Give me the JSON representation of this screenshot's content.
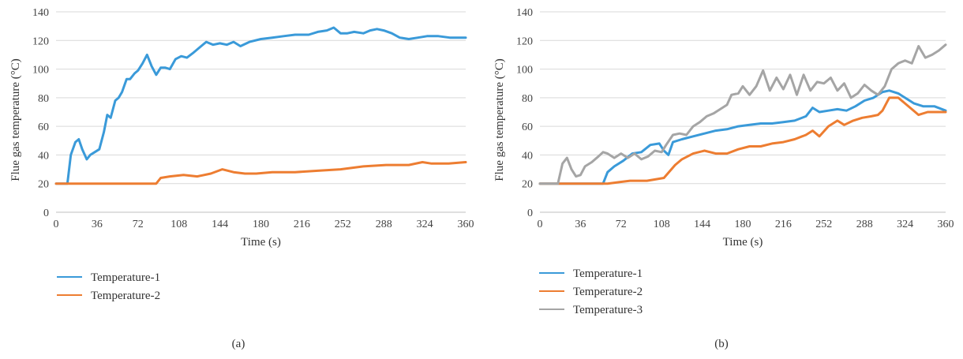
{
  "chart_data": [
    {
      "type": "line",
      "caption": "(a)",
      "xlabel": "Time (s)",
      "ylabel": "Flue gas temperature (°C)",
      "xlim": [
        0,
        360
      ],
      "ylim": [
        0,
        140
      ],
      "xticks": [
        0,
        36,
        72,
        108,
        144,
        180,
        216,
        252,
        288,
        324,
        360
      ],
      "yticks": [
        0,
        20,
        40,
        60,
        80,
        100,
        120,
        140
      ],
      "grid": true,
      "legend_position": "bottom-left",
      "series": [
        {
          "name": "Temperature-1",
          "color": "#3a9ad9",
          "x": [
            0,
            10,
            13,
            17,
            20,
            23,
            27,
            30,
            34,
            38,
            42,
            45,
            48,
            52,
            55,
            58,
            62,
            65,
            69,
            72,
            76,
            80,
            84,
            88,
            92,
            96,
            100,
            105,
            110,
            115,
            120,
            126,
            132,
            138,
            144,
            150,
            156,
            162,
            170,
            180,
            190,
            200,
            210,
            216,
            222,
            230,
            238,
            244,
            250,
            256,
            262,
            270,
            276,
            282,
            288,
            295,
            302,
            310,
            318,
            326,
            336,
            346,
            360
          ],
          "y": [
            20,
            20,
            40,
            49,
            51,
            44,
            37,
            40,
            42,
            44,
            56,
            68,
            66,
            78,
            80,
            84,
            93,
            93,
            97,
            99,
            104,
            110,
            102,
            96,
            101,
            101,
            100,
            107,
            109,
            108,
            111,
            115,
            119,
            117,
            118,
            117,
            119,
            116,
            119,
            121,
            122,
            123,
            124,
            124,
            124,
            126,
            127,
            129,
            125,
            125,
            126,
            125,
            127,
            128,
            127,
            125,
            122,
            121,
            122,
            123,
            123,
            122,
            122
          ]
        },
        {
          "name": "Temperature-2",
          "color": "#ed7d31",
          "x": [
            0,
            88,
            92,
            100,
            112,
            124,
            136,
            146,
            156,
            166,
            176,
            190,
            210,
            230,
            250,
            270,
            290,
            310,
            322,
            330,
            345,
            360
          ],
          "y": [
            20,
            20,
            24,
            25,
            26,
            25,
            27,
            30,
            28,
            27,
            27,
            28,
            28,
            29,
            30,
            32,
            33,
            33,
            35,
            34,
            34,
            35
          ]
        }
      ]
    },
    {
      "type": "line",
      "caption": "(b)",
      "xlabel": "Time (s)",
      "ylabel": "Flue gas temperature (°C)",
      "xlim": [
        0,
        360
      ],
      "ylim": [
        0,
        140
      ],
      "xticks": [
        0,
        36,
        72,
        108,
        144,
        180,
        216,
        252,
        288,
        324,
        360
      ],
      "yticks": [
        0,
        20,
        40,
        60,
        80,
        100,
        120,
        140
      ],
      "grid": true,
      "legend_position": "bottom-left",
      "series": [
        {
          "name": "Temperature-1",
          "color": "#3a9ad9",
          "x": [
            0,
            56,
            60,
            66,
            74,
            82,
            90,
            98,
            106,
            110,
            114,
            118,
            126,
            136,
            146,
            156,
            166,
            176,
            186,
            196,
            206,
            216,
            226,
            236,
            242,
            248,
            256,
            264,
            272,
            280,
            288,
            296,
            304,
            310,
            318,
            324,
            332,
            340,
            350,
            360
          ],
          "y": [
            20,
            20,
            28,
            32,
            36,
            41,
            42,
            47,
            48,
            43,
            40,
            49,
            51,
            53,
            55,
            57,
            58,
            60,
            61,
            62,
            62,
            63,
            64,
            67,
            73,
            70,
            71,
            72,
            71,
            74,
            78,
            80,
            84,
            85,
            83,
            80,
            76,
            74,
            74,
            71
          ]
        },
        {
          "name": "Temperature-2",
          "color": "#ed7d31",
          "x": [
            0,
            60,
            70,
            80,
            95,
            110,
            120,
            126,
            136,
            146,
            156,
            166,
            176,
            186,
            196,
            206,
            216,
            226,
            236,
            242,
            248,
            256,
            264,
            270,
            278,
            286,
            294,
            300,
            304,
            310,
            318,
            324,
            330,
            336,
            344,
            352,
            360
          ],
          "y": [
            20,
            20,
            21,
            22,
            22,
            24,
            33,
            37,
            41,
            43,
            41,
            41,
            44,
            46,
            46,
            48,
            49,
            51,
            54,
            57,
            53,
            60,
            64,
            61,
            64,
            66,
            67,
            68,
            71,
            80,
            80,
            76,
            72,
            68,
            70,
            70,
            70
          ]
        },
        {
          "name": "Temperature-3",
          "color": "#a5a5a5",
          "x": [
            0,
            16,
            20,
            24,
            28,
            32,
            36,
            40,
            46,
            52,
            56,
            60,
            66,
            72,
            78,
            84,
            90,
            96,
            102,
            108,
            112,
            118,
            124,
            130,
            136,
            142,
            148,
            154,
            160,
            166,
            170,
            176,
            180,
            186,
            192,
            198,
            204,
            210,
            216,
            222,
            228,
            234,
            240,
            246,
            252,
            258,
            264,
            270,
            276,
            282,
            288,
            294,
            300,
            306,
            312,
            318,
            324,
            330,
            336,
            342,
            348,
            354,
            360
          ],
          "y": [
            20,
            20,
            34,
            38,
            30,
            25,
            26,
            32,
            35,
            39,
            42,
            41,
            38,
            41,
            38,
            41,
            37,
            39,
            43,
            42,
            47,
            54,
            55,
            54,
            60,
            63,
            67,
            69,
            72,
            75,
            82,
            83,
            88,
            82,
            88,
            99,
            85,
            94,
            86,
            96,
            82,
            96,
            85,
            91,
            90,
            94,
            85,
            90,
            80,
            83,
            89,
            85,
            82,
            88,
            100,
            104,
            106,
            104,
            116,
            108,
            110,
            113,
            117
          ]
        }
      ]
    }
  ]
}
